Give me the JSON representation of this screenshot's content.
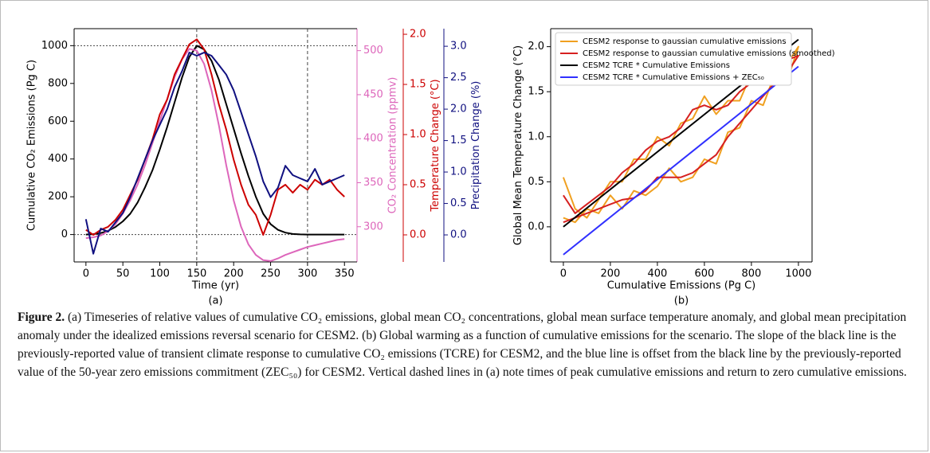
{
  "chart_data": [
    {
      "type": "line",
      "xlabel": "Time (yr)",
      "panel_label": "(a)",
      "xlim": [
        -16,
        367
      ],
      "xticks": [
        0,
        50,
        100,
        150,
        200,
        250,
        300,
        350
      ],
      "ylim": [
        -145,
        1090
      ],
      "yticks": [
        0,
        200,
        400,
        600,
        800,
        1000
      ],
      "ylabel": "Cumulative CO₂ Emissions (Pg C)",
      "y2lim": [
        260,
        525
      ],
      "y2ticks": [
        300,
        350,
        400,
        450,
        500
      ],
      "y2label": "CO₂ Concentration (ppmv)",
      "y2color": "#dd66bb",
      "y3lim": [
        -0.27,
        2.056
      ],
      "y3ticks": [
        {
          "value": 0,
          "label": "0.0"
        },
        {
          "value": 0.5,
          "label": "0.5"
        },
        {
          "value": 1,
          "label": "1.0"
        },
        {
          "value": 1.5,
          "label": "1.5"
        },
        {
          "value": 2,
          "label": "2.0"
        }
      ],
      "y3label": "Temperature Change (°C)",
      "y3color": "#cc0000",
      "y4lim": [
        -0.43,
        3.28
      ],
      "y4ticks": [
        {
          "value": 0,
          "label": "0.0"
        },
        {
          "value": 0.5,
          "label": "0.5"
        },
        {
          "value": 1,
          "label": "1.0"
        },
        {
          "value": 1.5,
          "label": "1.5"
        },
        {
          "value": 2,
          "label": "2.0"
        },
        {
          "value": 2.5,
          "label": "2.5"
        },
        {
          "value": 3,
          "label": "3.0"
        }
      ],
      "y4label": "Precipitation Change (%)",
      "y4color": "#101080",
      "hlines": [
        0,
        1000
      ],
      "vlines": [
        150,
        300
      ],
      "x": [
        0,
        10,
        20,
        30,
        40,
        50,
        60,
        70,
        80,
        90,
        100,
        110,
        120,
        130,
        140,
        150,
        160,
        170,
        180,
        190,
        200,
        210,
        220,
        230,
        240,
        250,
        260,
        270,
        280,
        290,
        300,
        310,
        320,
        330,
        340,
        350
      ],
      "series": [
        {
          "color": "#000000",
          "axis": "y",
          "values": [
            0,
            2,
            8,
            20,
            40,
            70,
            110,
            170,
            250,
            340,
            450,
            570,
            700,
            830,
            940,
            1000,
            980,
            920,
            820,
            690,
            560,
            430,
            310,
            200,
            110,
            55,
            25,
            10,
            3,
            1,
            0,
            0,
            0,
            0,
            0,
            0
          ]
        },
        {
          "color": "#dd66bb",
          "axis": "y2",
          "values": [
            287,
            288,
            290,
            295,
            303,
            315,
            330,
            348,
            370,
            395,
            420,
            445,
            470,
            490,
            502,
            500,
            485,
            455,
            415,
            370,
            330,
            300,
            280,
            268,
            262,
            261,
            264,
            268,
            271,
            274,
            277,
            279,
            281,
            283,
            285,
            286
          ]
        },
        {
          "color": "#cc0000",
          "axis": "y3",
          "values": [
            0.05,
            0.0,
            0.05,
            0.08,
            0.15,
            0.25,
            0.4,
            0.55,
            0.75,
            0.95,
            1.2,
            1.35,
            1.6,
            1.75,
            1.9,
            1.95,
            1.85,
            1.6,
            1.3,
            1.05,
            0.75,
            0.5,
            0.3,
            0.2,
            0.0,
            0.2,
            0.45,
            0.5,
            0.42,
            0.5,
            0.45,
            0.55,
            0.5,
            0.55,
            0.45,
            0.38
          ]
        },
        {
          "color": "#101080",
          "axis": "y4",
          "values": [
            0.25,
            -0.3,
            0.1,
            0.05,
            0.2,
            0.35,
            0.6,
            0.9,
            1.2,
            1.5,
            1.75,
            2.0,
            2.35,
            2.6,
            2.9,
            2.85,
            2.9,
            2.85,
            2.7,
            2.55,
            2.3,
            1.95,
            1.6,
            1.25,
            0.85,
            0.6,
            0.75,
            1.1,
            0.95,
            0.9,
            0.85,
            1.05,
            0.8,
            0.85,
            0.9,
            0.95
          ]
        }
      ]
    },
    {
      "type": "line",
      "xlabel": "Cumulative Emissions (Pg C)",
      "panel_label": "(b)",
      "ylabel": "Global Mean Temperature Change (°C)",
      "xlim": [
        -54,
        1058
      ],
      "xticks": [
        0,
        200,
        400,
        600,
        800,
        1000
      ],
      "ylim": [
        -0.39,
        2.2
      ],
      "yticks": [
        {
          "value": 0,
          "label": "0.0"
        },
        {
          "value": 0.5,
          "label": "0.5"
        },
        {
          "value": 1,
          "label": "1.0"
        },
        {
          "value": 1.5,
          "label": "1.5"
        },
        {
          "value": 2,
          "label": "2.0"
        }
      ],
      "legend": "upper left",
      "series": [
        {
          "name": "CESM2 response to gaussian cumulative emissions",
          "color": "#f0a020",
          "x": [
            0,
            50,
            100,
            150,
            200,
            250,
            300,
            350,
            400,
            450,
            500,
            550,
            600,
            650,
            700,
            750,
            800,
            850,
            900,
            950,
            1000,
            950,
            900,
            850,
            800,
            750,
            700,
            650,
            600,
            550,
            500,
            450,
            400,
            350,
            300,
            250,
            200,
            150,
            100,
            50,
            0
          ],
          "values": [
            0.1,
            0.05,
            0.2,
            0.15,
            0.35,
            0.2,
            0.4,
            0.35,
            0.45,
            0.65,
            0.5,
            0.55,
            0.75,
            0.7,
            1.05,
            1.1,
            1.4,
            1.35,
            1.7,
            1.6,
            2.0,
            1.8,
            1.85,
            1.6,
            1.7,
            1.4,
            1.4,
            1.25,
            1.45,
            1.2,
            1.15,
            0.9,
            1.0,
            0.75,
            0.75,
            0.5,
            0.5,
            0.3,
            0.1,
            0.2,
            0.55
          ]
        },
        {
          "name": "CESM2 response to gaussian cumulative emissions (smoothed)",
          "color": "#d62020",
          "x": [
            0,
            50,
            100,
            150,
            200,
            250,
            300,
            350,
            400,
            450,
            500,
            550,
            600,
            650,
            700,
            750,
            800,
            850,
            900,
            950,
            1000,
            950,
            900,
            850,
            800,
            750,
            700,
            650,
            600,
            550,
            500,
            450,
            400,
            350,
            300,
            250,
            200,
            150,
            100,
            50,
            0
          ],
          "values": [
            0.05,
            0.1,
            0.15,
            0.2,
            0.25,
            0.3,
            0.32,
            0.4,
            0.55,
            0.55,
            0.55,
            0.6,
            0.7,
            0.8,
            1.0,
            1.15,
            1.3,
            1.45,
            1.6,
            1.7,
            1.9,
            1.85,
            1.75,
            1.65,
            1.6,
            1.5,
            1.35,
            1.3,
            1.35,
            1.3,
            1.1,
            1.0,
            0.95,
            0.85,
            0.7,
            0.6,
            0.45,
            0.35,
            0.25,
            0.15,
            0.35
          ]
        },
        {
          "name": "CESM2 TCRE * Cumulative Emissions",
          "color": "#000000",
          "x": [
            0,
            1000
          ],
          "values": [
            0,
            2.08
          ]
        },
        {
          "name": "CESM2 TCRE * Cumulative Emissions + ZEC₅₀",
          "color": "#3030ff",
          "x": [
            0,
            1000
          ],
          "values": [
            -0.31,
            1.78
          ]
        }
      ]
    }
  ],
  "caption": {
    "label": "Figure 2.",
    "text": "(a) Timeseries of relative values of cumulative CO₂ emissions, global mean CO₂ concentrations, global mean surface temperature anomaly, and global mean precipitation anomaly under the idealized emissions reversal scenario for CESM2. (b) Global warming as a function of cumulative emissions for the scenario. The slope of the black line is the previously-reported value of transient climate response to cumulative CO₂ emissions (TCRE) for CESM2, and the blue line is offset from the black line by the previously-reported value of the 50-year zero emissions commitment (ZEC₅₀) for CESM2. Vertical dashed lines in (a) note times of peak cumulative emissions and return to zero cumulative emissions."
  }
}
